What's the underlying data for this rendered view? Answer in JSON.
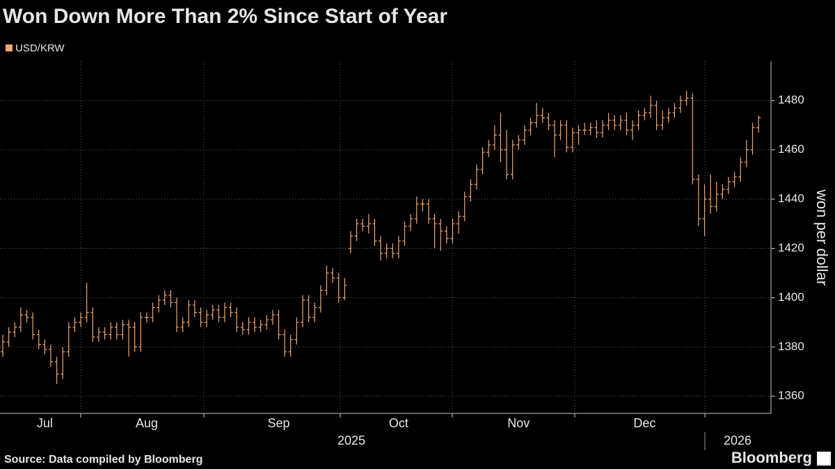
{
  "chart_data": {
    "type": "ohlc",
    "title": "Won Down More Than 2% Since Start of Year",
    "y_axis_title": "won per dollar",
    "source": "Source: Data compiled by Bloomberg",
    "brand": "Bloomberg",
    "year_labels": [
      "2025",
      "2026"
    ],
    "ylim": [
      1353,
      1496
    ],
    "yticks": [
      1360,
      1380,
      1400,
      1420,
      1440,
      1460,
      1480
    ],
    "grid": true,
    "categories": [
      null,
      null,
      null,
      null,
      null,
      null,
      null,
      "Jul",
      null,
      null,
      null,
      null,
      null,
      null,
      null,
      null,
      null,
      null,
      null,
      null,
      null,
      null,
      null,
      null,
      "Aug",
      null,
      null,
      null,
      null,
      null,
      null,
      null,
      null,
      null,
      null,
      null,
      null,
      null,
      null,
      null,
      null,
      null,
      null,
      null,
      null,
      null,
      "Sep",
      null,
      null,
      null,
      null,
      null,
      null,
      null,
      null,
      null,
      null,
      null,
      null,
      null,
      null,
      null,
      null,
      null,
      null,
      null,
      "Oct",
      null,
      null,
      null,
      null,
      null,
      null,
      null,
      null,
      null,
      null,
      null,
      null,
      null,
      null,
      null,
      null,
      null,
      null,
      null,
      "Nov",
      null,
      null,
      null,
      null,
      null,
      null,
      null,
      null,
      null,
      null,
      null,
      null,
      null,
      null,
      null,
      null,
      null,
      null,
      null,
      null,
      "Dec",
      null,
      null,
      null,
      null,
      null,
      null,
      null,
      null,
      null,
      null,
      null,
      null,
      null,
      null,
      null,
      null,
      null,
      null,
      null
    ],
    "series": [
      {
        "name": "USD/KRW",
        "color": "#f7a76c",
        "open": [
          1378,
          1382,
          1386,
          1388,
          1393,
          1392,
          1385,
          1381,
          1379,
          1374,
          1369,
          1378,
          1388,
          1390,
          1392,
          1394,
          1384,
          1386,
          1385,
          1388,
          1385,
          1389,
          1388,
          1380,
          1392,
          1392,
          1396,
          1399,
          1401,
          1398,
          1388,
          1390,
          1397,
          1394,
          1390,
          1393,
          1395,
          1392,
          1396,
          1394,
          1388,
          1387,
          1390,
          1388,
          1389,
          1391,
          1393,
          1385,
          1378,
          1383,
          1390,
          1399,
          1392,
          1396,
          1403,
          1410,
          1408,
          1400,
          1420,
          1425,
          1430,
          1429,
          1430,
          1423,
          1418,
          1420,
          1418,
          1423,
          1429,
          1432,
          1438,
          1438,
          1432,
          1430,
          1427,
          1424,
          1430,
          1433,
          1441,
          1446,
          1452,
          1459,
          1462,
          1466,
          1460,
          1450,
          1462,
          1464,
          1468,
          1471,
          1474,
          1473,
          1470,
          1466,
          1470,
          1461,
          1467,
          1468,
          1468,
          1469,
          1467,
          1470,
          1472,
          1470,
          1472,
          1468,
          1470,
          1474,
          1475,
          1478,
          1470,
          1473,
          1475,
          1477,
          1480,
          1481,
          1448,
          1432,
          1440,
          1437,
          1442,
          1444,
          1447,
          1449,
          1455,
          1460,
          1469
        ],
        "high": [
          1385,
          1388,
          1390,
          1396,
          1395,
          1394,
          1387,
          1383,
          1381,
          1376,
          1380,
          1390,
          1392,
          1394,
          1406,
          1396,
          1388,
          1388,
          1390,
          1390,
          1391,
          1391,
          1390,
          1394,
          1394,
          1398,
          1401,
          1403,
          1403,
          1400,
          1392,
          1399,
          1399,
          1396,
          1395,
          1397,
          1397,
          1398,
          1398,
          1396,
          1390,
          1392,
          1392,
          1391,
          1393,
          1395,
          1395,
          1387,
          1385,
          1392,
          1401,
          1401,
          1398,
          1405,
          1413,
          1412,
          1410,
          1408,
          1427,
          1432,
          1432,
          1434,
          1432,
          1425,
          1422,
          1422,
          1425,
          1431,
          1434,
          1441,
          1440,
          1440,
          1434,
          1432,
          1429,
          1432,
          1435,
          1443,
          1448,
          1454,
          1461,
          1464,
          1470,
          1475,
          1468,
          1464,
          1466,
          1470,
          1473,
          1479,
          1477,
          1475,
          1472,
          1472,
          1472,
          1469,
          1470,
          1471,
          1471,
          1472,
          1472,
          1475,
          1474,
          1474,
          1475,
          1472,
          1476,
          1477,
          1482,
          1480,
          1476,
          1477,
          1479,
          1482,
          1484,
          1483,
          1450,
          1446,
          1450,
          1447,
          1446,
          1449,
          1451,
          1457,
          1464,
          1471,
          1474
        ],
        "low": [
          1376,
          1380,
          1384,
          1386,
          1390,
          1383,
          1379,
          1377,
          1372,
          1365,
          1367,
          1376,
          1386,
          1388,
          1390,
          1382,
          1382,
          1383,
          1383,
          1383,
          1383,
          1376,
          1378,
          1378,
          1390,
          1390,
          1394,
          1397,
          1396,
          1386,
          1386,
          1388,
          1392,
          1388,
          1388,
          1391,
          1390,
          1390,
          1392,
          1386,
          1385,
          1385,
          1386,
          1386,
          1387,
          1389,
          1383,
          1376,
          1376,
          1381,
          1388,
          1390,
          1390,
          1394,
          1401,
          1406,
          1398,
          1399,
          1418,
          1423,
          1427,
          1426,
          1421,
          1415,
          1416,
          1416,
          1416,
          1421,
          1427,
          1430,
          1435,
          1430,
          1420,
          1419,
          1422,
          1422,
          1426,
          1431,
          1439,
          1444,
          1450,
          1457,
          1460,
          1455,
          1448,
          1448,
          1460,
          1462,
          1466,
          1469,
          1471,
          1468,
          1457,
          1464,
          1459,
          1459,
          1462,
          1466,
          1466,
          1465,
          1465,
          1468,
          1468,
          1468,
          1466,
          1464,
          1468,
          1472,
          1473,
          1468,
          1468,
          1471,
          1473,
          1475,
          1478,
          1446,
          1429,
          1425,
          1434,
          1435,
          1440,
          1442,
          1445,
          1447,
          1453,
          1458,
          1467
        ],
        "close": [
          1382,
          1386,
          1388,
          1393,
          1392,
          1385,
          1381,
          1379,
          1374,
          1369,
          1378,
          1388,
          1390,
          1392,
          1394,
          1384,
          1386,
          1385,
          1388,
          1385,
          1389,
          1388,
          1380,
          1392,
          1392,
          1396,
          1399,
          1401,
          1398,
          1388,
          1390,
          1397,
          1394,
          1390,
          1393,
          1395,
          1392,
          1396,
          1394,
          1388,
          1387,
          1390,
          1388,
          1389,
          1391,
          1393,
          1385,
          1378,
          1383,
          1390,
          1399,
          1392,
          1396,
          1403,
          1410,
          1408,
          1400,
          1405,
          1425,
          1430,
          1429,
          1430,
          1423,
          1418,
          1420,
          1418,
          1423,
          1429,
          1432,
          1438,
          1438,
          1432,
          1430,
          1427,
          1424,
          1430,
          1433,
          1441,
          1446,
          1452,
          1459,
          1462,
          1466,
          1460,
          1450,
          1462,
          1464,
          1468,
          1471,
          1474,
          1473,
          1470,
          1466,
          1470,
          1461,
          1467,
          1468,
          1468,
          1469,
          1467,
          1470,
          1472,
          1470,
          1472,
          1468,
          1470,
          1474,
          1475,
          1478,
          1470,
          1473,
          1475,
          1477,
          1480,
          1481,
          1448,
          1432,
          1440,
          1437,
          1442,
          1444,
          1447,
          1449,
          1455,
          1460,
          1469,
          1473
        ]
      }
    ]
  }
}
